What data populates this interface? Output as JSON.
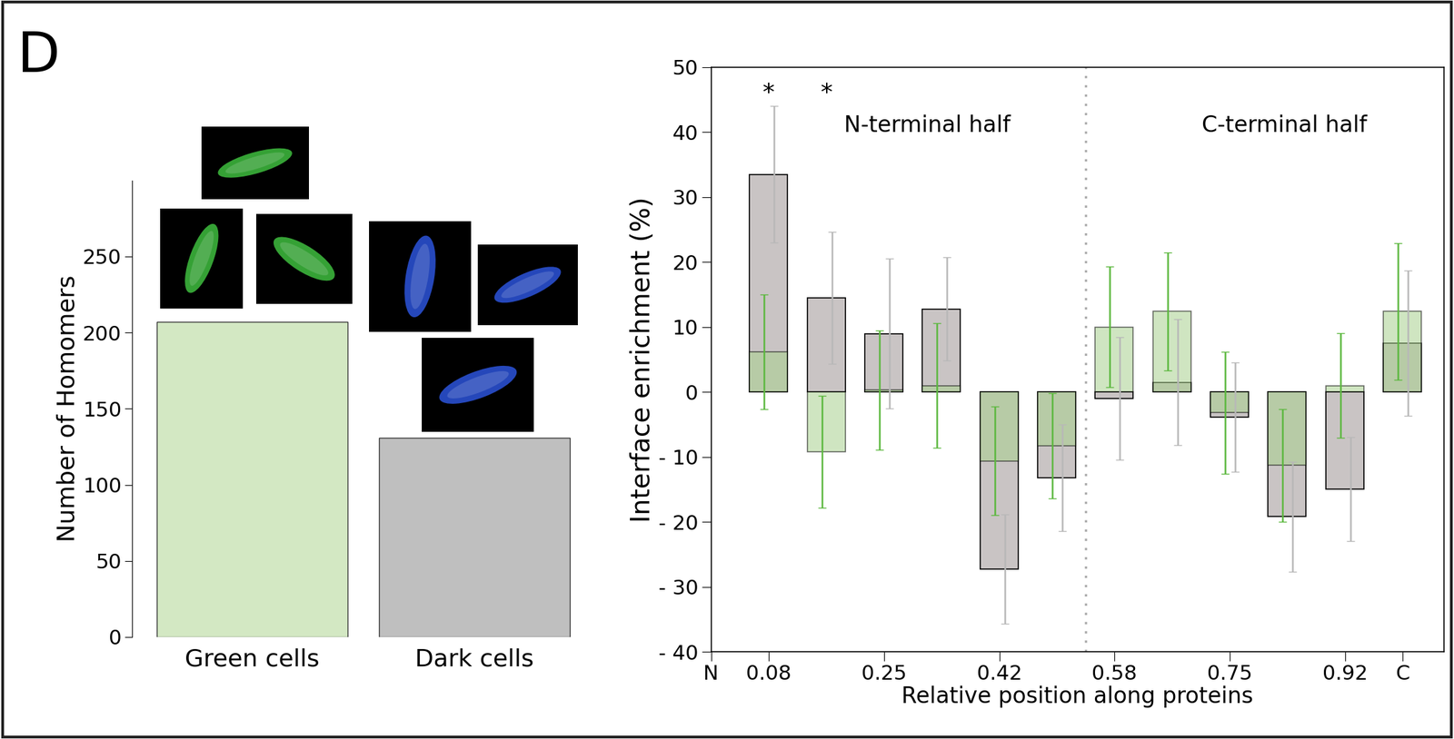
{
  "panel_label": "D",
  "chart_data": [
    {
      "type": "bar",
      "ylabel": "Number of Homomers",
      "categories": [
        "Green cells",
        "Dark cells"
      ],
      "values": [
        207,
        131
      ],
      "colors": [
        "#d3e8c3",
        "#bfbfbf"
      ],
      "ylim": [
        0,
        300
      ],
      "yticks": [
        0,
        50,
        100,
        150,
        200,
        250
      ]
    },
    {
      "type": "bar",
      "ylabel": "Interface enrichment (%)",
      "xlabel": "Relative position along proteins",
      "x": [
        0.083,
        0.167,
        0.25,
        0.333,
        0.417,
        0.5,
        0.583,
        0.667,
        0.75,
        0.833,
        0.917,
        1.0
      ],
      "series": [
        {
          "color": "#c9c4c4",
          "values": [
            33.5,
            14.5,
            9,
            12.8,
            -27.3,
            -13.2,
            -1,
            1.5,
            -3.9,
            -19.2,
            -15,
            7.5
          ],
          "errors": [
            10.5,
            10.2,
            11.5,
            8,
            8.4,
            8.2,
            9.4,
            9.7,
            8.4,
            8.5,
            8,
            11.2
          ]
        },
        {
          "color": "#a9d18e",
          "values": [
            6.2,
            -9.2,
            0.3,
            1.0,
            -10.6,
            -8.3,
            10,
            12.4,
            -3.2,
            -11.3,
            1.0,
            12.4
          ],
          "errors": [
            8.8,
            8.6,
            9.2,
            9.6,
            8.4,
            8.1,
            9.3,
            9.1,
            9.4,
            8.7,
            8.1,
            10.5
          ]
        }
      ],
      "annotations": [
        {
          "text": "*",
          "x": 0.083
        },
        {
          "text": "*",
          "x": 0.167
        },
        {
          "text": "N-terminal half"
        },
        {
          "text": "C-terminal half"
        }
      ],
      "xlim": [
        0,
        1.06
      ],
      "xticks": [
        {
          "value": 0,
          "label": "N"
        },
        {
          "value": 0.083,
          "label": "0.08"
        },
        0.25,
        {
          "value": 0.417,
          "label": "0.42"
        },
        {
          "value": 0.583,
          "label": "0.58"
        },
        0.75,
        {
          "value": 0.917,
          "label": "0.92"
        },
        {
          "value": 1.0,
          "label": "C"
        }
      ],
      "ylim": [
        -40,
        50
      ],
      "yticks": [
        {
          "value": -40,
          "label": "- 40"
        },
        {
          "value": -30,
          "label": "- 30"
        },
        {
          "value": -20,
          "label": "- 20"
        },
        {
          "value": -10,
          "label": "- 10"
        },
        0,
        10,
        20,
        30,
        40,
        50
      ]
    }
  ]
}
